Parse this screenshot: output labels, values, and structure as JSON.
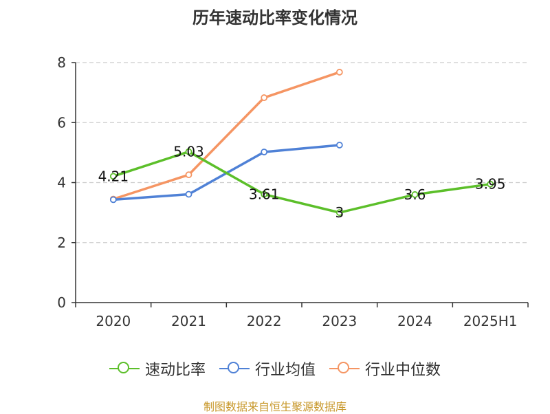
{
  "chart_data": {
    "type": "line",
    "title": "历年速动比率变化情况",
    "categories": [
      "2020",
      "2021",
      "2022",
      "2023",
      "2024",
      "2025H1"
    ],
    "ylim": [
      0,
      8
    ],
    "yticks": [
      0,
      2,
      4,
      6,
      8
    ],
    "grid": true,
    "legend_position": "bottom",
    "series": [
      {
        "name": "速动比率",
        "color": "#5cbf2a",
        "values": [
          4.21,
          5.03,
          3.61,
          3.0,
          3.6,
          3.95
        ],
        "labels": [
          "4.21",
          "5.03",
          "3.61",
          "3",
          "3.6",
          "3.95"
        ]
      },
      {
        "name": "行业均值",
        "color": "#4f81d6",
        "values": [
          3.43,
          3.61,
          5.02,
          5.25,
          null,
          null
        ]
      },
      {
        "name": "行业中位数",
        "color": "#f59563",
        "values": [
          3.45,
          4.26,
          6.83,
          7.68,
          null,
          null
        ]
      }
    ]
  },
  "source": "制图数据来自恒生聚源数据库"
}
